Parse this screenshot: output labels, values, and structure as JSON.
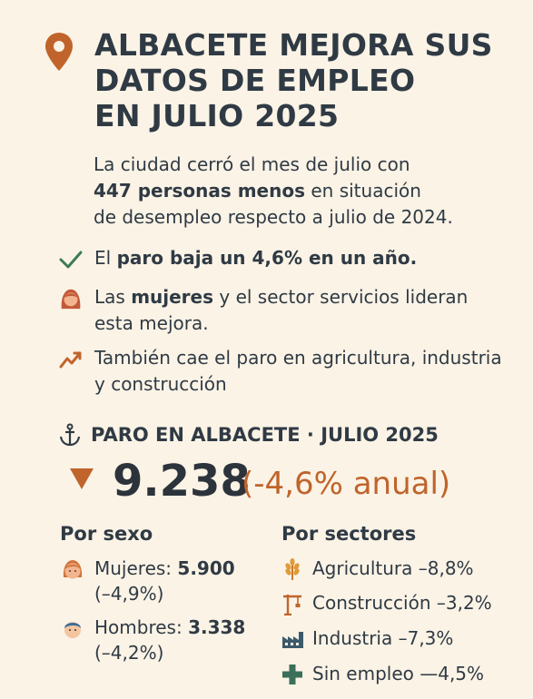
{
  "header": {
    "title_lines": [
      "ALBACETE MEJORA SUS",
      "DATOS DE EMPLEO",
      "EN JULIO 2025"
    ],
    "icon": "location-pin-icon",
    "accent_color": "#c0642b"
  },
  "intro": {
    "line1": "La ciudad cerró el mes de julio con",
    "bold": "447 personas menos",
    "rest": " en situación",
    "line3": "de desempleo respecto a julio de 2024."
  },
  "bullets": [
    {
      "icon": "check-icon",
      "pre": "El ",
      "bold": "paro baja un 4,6% en un año.",
      "post": ""
    },
    {
      "icon": "woman-icon",
      "pre": "Las ",
      "bold": "mujeres",
      "post": " y el sector servicios lideran esta mejora."
    },
    {
      "icon": "trend-icon",
      "pre": "También cae el paro en agricultura, industria y construcción",
      "bold": "",
      "post": ""
    }
  ],
  "section": {
    "icon": "anchor-icon",
    "title": "PARO EN ALBACETE · JULIO 2025",
    "value": "9.238",
    "change": "(-4,6% anual)",
    "trend_icon": "down-triangle-icon"
  },
  "by_sex": {
    "title": "Por sexo",
    "items": [
      {
        "icon": "woman-face-icon",
        "label": "Mujeres: ",
        "value": "5.900",
        "change": "(–4,9%)"
      },
      {
        "icon": "man-face-icon",
        "label": "Hombres: ",
        "value": "3.338",
        "change": "(–4,2%)"
      }
    ]
  },
  "by_sector": {
    "title": "Por sectores",
    "items": [
      {
        "icon": "wheat-icon",
        "label": "Agricultura –8,8%"
      },
      {
        "icon": "crane-icon",
        "label": "Construcción –3,2%"
      },
      {
        "icon": "factory-icon",
        "label": "Industria –7,3%"
      },
      {
        "icon": "plus-icon",
        "label": "Sin empleo —4,5%"
      }
    ]
  }
}
